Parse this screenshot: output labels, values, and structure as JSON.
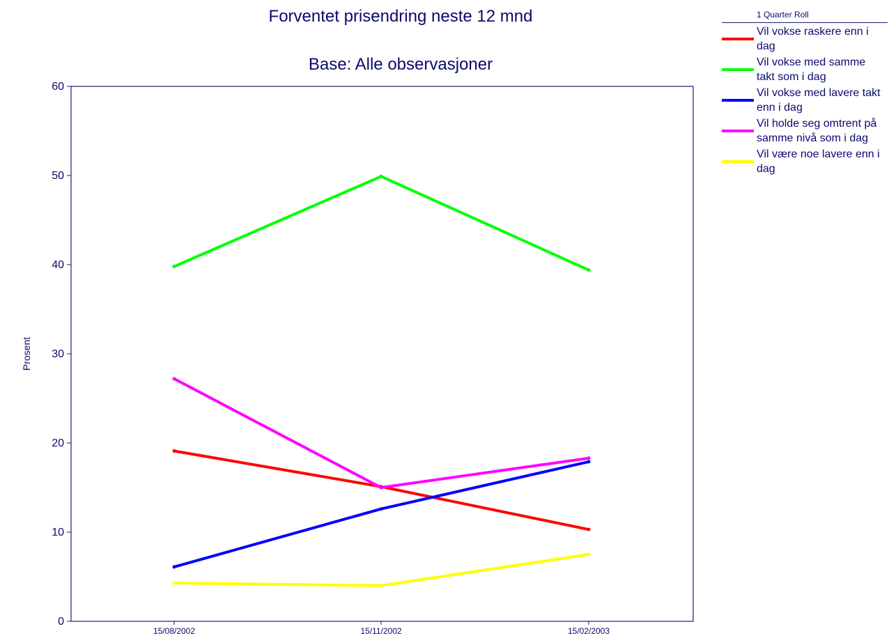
{
  "chart_data": {
    "type": "line",
    "title": "Forventet prisendring neste 12 mnd",
    "subtitle": "Base: Alle observasjoner",
    "ylabel": "Prosent",
    "xlabel": "",
    "ylim": [
      0,
      60
    ],
    "yticks": [
      0,
      10,
      20,
      30,
      40,
      50,
      60
    ],
    "categories": [
      "15/08/2002",
      "15/11/2002",
      "15/02/2003"
    ],
    "legend_title": "1 Quarter Roll",
    "legend_position": "right",
    "grid": false,
    "series": [
      {
        "name": "Vil vokse raskere enn i dag",
        "color": "#ff0000",
        "values": [
          19.1,
          15.1,
          10.3
        ]
      },
      {
        "name": "Vil vokse med samme takt som i dag",
        "color": "#00ff00",
        "values": [
          39.8,
          49.9,
          39.4
        ]
      },
      {
        "name": "Vil vokse med lavere takt enn i dag",
        "color": "#0000ff",
        "values": [
          6.1,
          12.6,
          17.9
        ]
      },
      {
        "name": "Vil holde seg omtrent på samme nivå som i dag",
        "color": "#ff00ff",
        "values": [
          27.2,
          15.0,
          18.3
        ]
      },
      {
        "name": "Vil være noe lavere enn i dag",
        "color": "#ffff00",
        "values": [
          4.3,
          4.0,
          7.5
        ]
      }
    ]
  }
}
